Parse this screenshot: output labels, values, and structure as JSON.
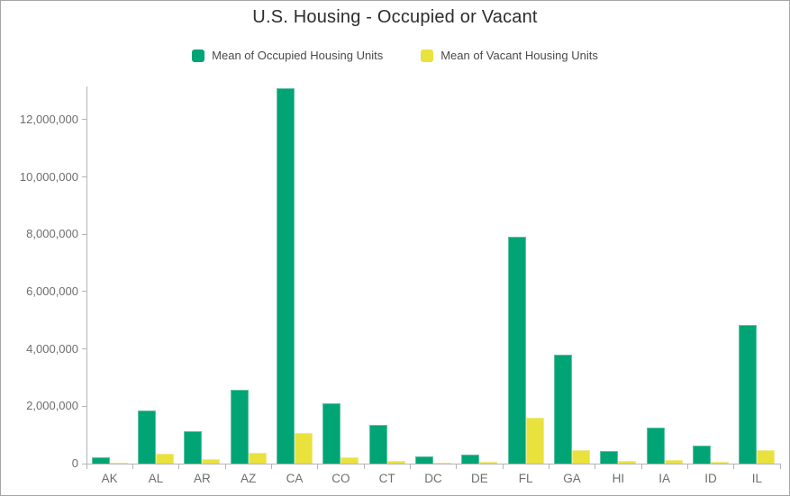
{
  "chart_data": {
    "type": "bar",
    "title": "U.S. Housing - Occupied or Vacant",
    "categories": [
      "AK",
      "AL",
      "AR",
      "AZ",
      "CA",
      "CO",
      "CT",
      "DC",
      "DE",
      "FL",
      "GA",
      "HI",
      "IA",
      "ID",
      "IL"
    ],
    "series": [
      {
        "name": "Mean of Occupied Housing Units",
        "color": "#00a475",
        "edge": "#5ec3a2",
        "values": [
          235000,
          1850000,
          1130000,
          2590000,
          13100000,
          2100000,
          1360000,
          265000,
          330000,
          7900000,
          3800000,
          440000,
          1250000,
          615000,
          4850000
        ]
      },
      {
        "name": "Mean of Vacant Housing Units",
        "color": "#e9e23d",
        "edge": "#f0ea8c",
        "values": [
          35000,
          350000,
          170000,
          375000,
          1080000,
          205000,
          100000,
          40000,
          70000,
          1590000,
          470000,
          80000,
          120000,
          70000,
          460000
        ]
      }
    ],
    "xlabel": "",
    "ylabel": "",
    "ylim": [
      0,
      13160000
    ],
    "yticks": [
      0,
      2000000,
      4000000,
      6000000,
      8000000,
      10000000,
      12000000
    ],
    "ytick_labels": [
      "0",
      "2,000,000",
      "4,000,000",
      "6,000,000",
      "8,000,000",
      "10,000,000",
      "12,000,000"
    ],
    "grid": false,
    "legend_position": "top"
  }
}
